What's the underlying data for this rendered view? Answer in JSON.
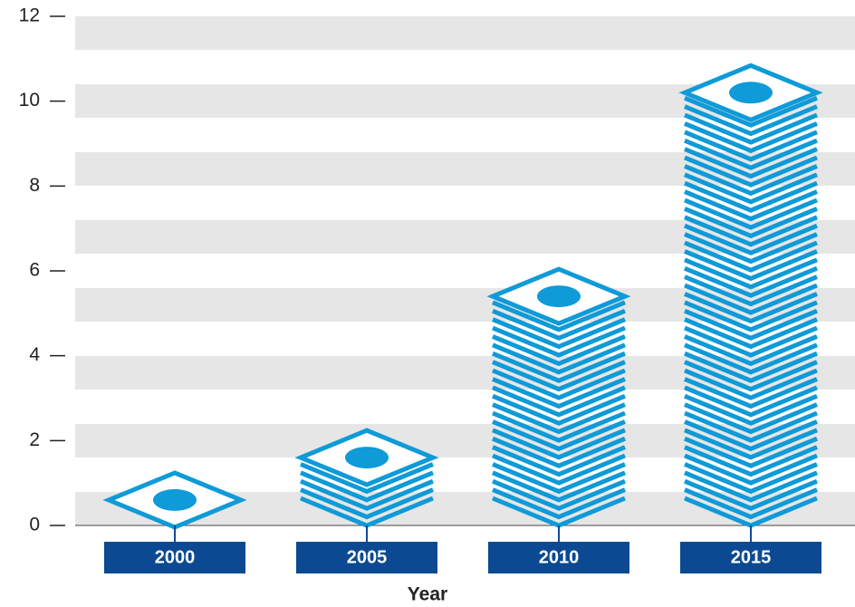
{
  "chart_data": {
    "type": "pictorial-bar",
    "x_label": "Year",
    "categories": [
      "2000",
      "2005",
      "2010",
      "2015"
    ],
    "values": [
      0.6,
      1.6,
      5.4,
      10.2
    ],
    "color": "#0f9ad8",
    "category_box_color": "#0b4a93",
    "ylim": [
      0,
      12
    ],
    "yticks": [
      0,
      2,
      4,
      6,
      8,
      10,
      12
    ],
    "grid": true
  }
}
